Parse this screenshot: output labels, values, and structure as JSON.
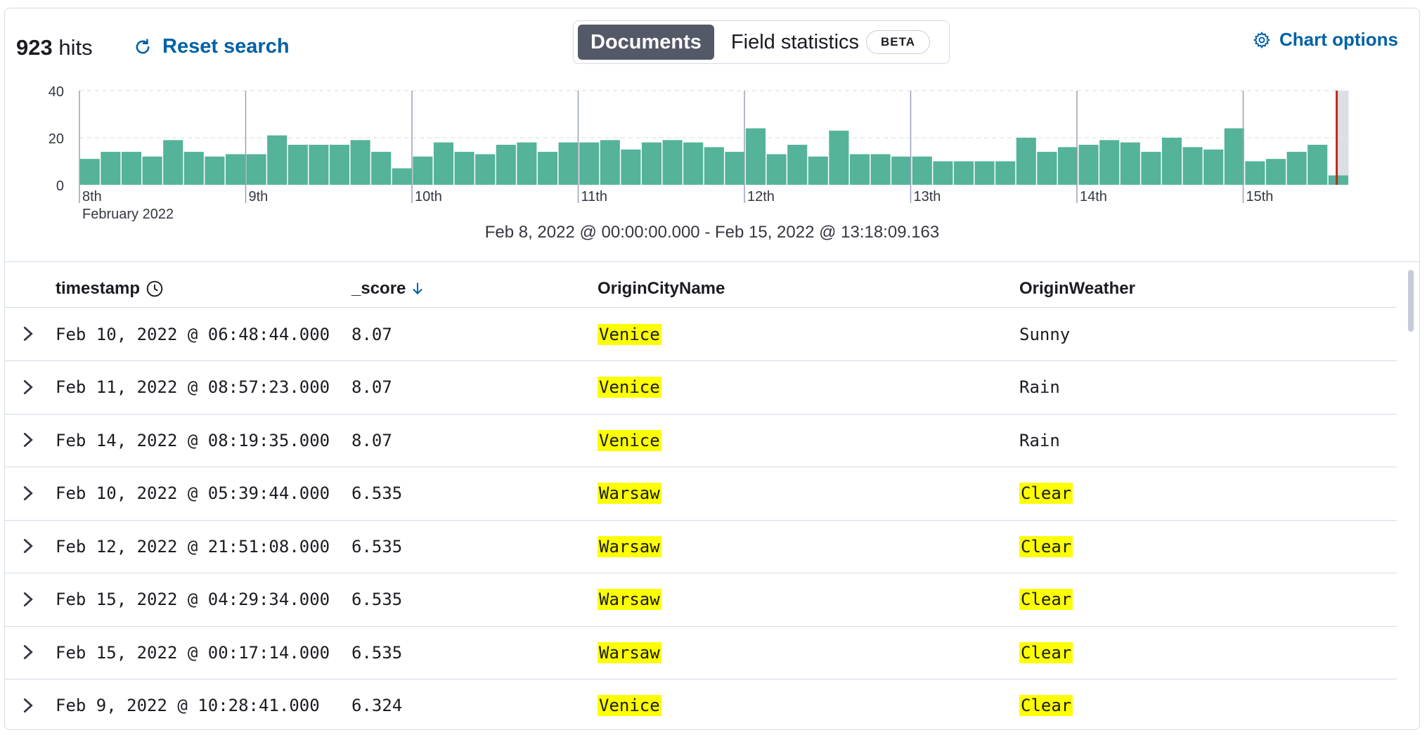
{
  "header": {
    "hits_count": "923",
    "hits_label": "hits",
    "reset_label": "Reset search",
    "tabs": [
      {
        "label": "Documents",
        "active": true
      },
      {
        "label": "Field statistics",
        "badge": "BETA",
        "active": false
      }
    ],
    "chart_options_label": "Chart options"
  },
  "chart_data": {
    "type": "bar",
    "x_ticks": [
      "8th",
      "9th",
      "10th",
      "11th",
      "12th",
      "13th",
      "14th",
      "15th"
    ],
    "x_sublabel": "February 2022",
    "y_ticks": [
      "0",
      "20",
      "40"
    ],
    "ylim": [
      0,
      40
    ],
    "values": [
      11,
      14,
      14,
      12,
      19,
      14,
      12,
      13,
      13,
      21,
      17,
      17,
      17,
      19,
      14,
      7,
      12,
      18,
      14,
      13,
      17,
      18,
      14,
      18,
      18,
      19,
      15,
      18,
      19,
      18,
      16,
      14,
      24,
      13,
      17,
      12,
      23,
      13,
      13,
      12,
      12,
      10,
      10,
      10,
      10,
      20,
      14,
      16,
      17,
      19,
      18,
      14,
      20,
      16,
      15,
      24,
      10,
      11,
      14,
      17,
      4
    ],
    "bar_color": "#54b399",
    "current_time_color": "#bd271e",
    "grid": "horizontal-dashed",
    "time_range": "Feb 8, 2022 @ 00:00:00.000 - Feb 15, 2022 @ 13:18:09.163"
  },
  "table": {
    "columns": [
      "timestamp",
      "_score",
      "OriginCityName",
      "OriginWeather"
    ],
    "rows": [
      {
        "timestamp": "Feb 10, 2022 @ 06:48:44.000",
        "score": "8.07",
        "city": "Venice",
        "weather": "Sunny",
        "weather_hl": false
      },
      {
        "timestamp": "Feb 11, 2022 @ 08:57:23.000",
        "score": "8.07",
        "city": "Venice",
        "weather": "Rain",
        "weather_hl": false
      },
      {
        "timestamp": "Feb 14, 2022 @ 08:19:35.000",
        "score": "8.07",
        "city": "Venice",
        "weather": "Rain",
        "weather_hl": false
      },
      {
        "timestamp": "Feb 10, 2022 @ 05:39:44.000",
        "score": "6.535",
        "city": "Warsaw",
        "weather": "Clear",
        "weather_hl": true
      },
      {
        "timestamp": "Feb 12, 2022 @ 21:51:08.000",
        "score": "6.535",
        "city": "Warsaw",
        "weather": "Clear",
        "weather_hl": true
      },
      {
        "timestamp": "Feb 15, 2022 @ 04:29:34.000",
        "score": "6.535",
        "city": "Warsaw",
        "weather": "Clear",
        "weather_hl": true
      },
      {
        "timestamp": "Feb 15, 2022 @ 00:17:14.000",
        "score": "6.535",
        "city": "Warsaw",
        "weather": "Clear",
        "weather_hl": true
      },
      {
        "timestamp": "Feb 9, 2022 @ 10:28:41.000",
        "score": "6.324",
        "city": "Venice",
        "weather": "Clear",
        "weather_hl": true
      }
    ]
  }
}
